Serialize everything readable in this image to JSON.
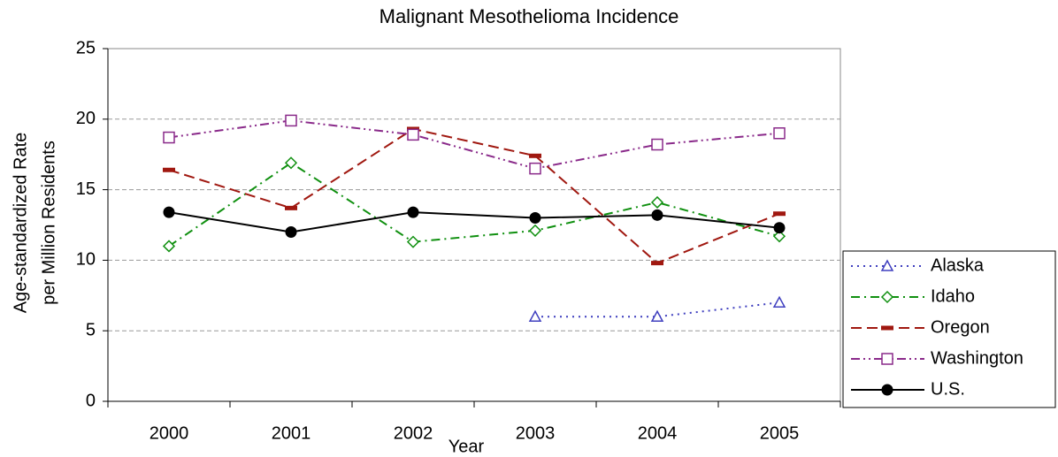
{
  "chart_data": {
    "type": "line",
    "title": "Malignant Mesothelioma Incidence",
    "xlabel": "Year",
    "ylabel": [
      "Age-standardized Rate",
      "per Million Residents"
    ],
    "categories": [
      "2000",
      "2001",
      "2002",
      "2003",
      "2004",
      "2005"
    ],
    "ylim": [
      0,
      25
    ],
    "yticks": [
      0,
      5,
      10,
      15,
      20,
      25
    ],
    "grid": true,
    "legend": "right",
    "series": [
      {
        "name": "Alaska",
        "color": "#3f3fbf",
        "marker": "triangle",
        "dash": "2,5",
        "values": [
          null,
          null,
          null,
          6,
          6,
          7
        ]
      },
      {
        "name": "Idaho",
        "color": "#109010",
        "marker": "diamond",
        "dash": "10,5,2,5",
        "values": [
          11,
          16.9,
          11.3,
          12.1,
          14.1,
          11.7
        ]
      },
      {
        "name": "Oregon",
        "color": "#a01810",
        "marker": "bar",
        "dash": "12,6",
        "values": [
          16.4,
          13.7,
          19.3,
          17.4,
          9.8,
          13.3
        ]
      },
      {
        "name": "Washington",
        "color": "#8a2a8a",
        "marker": "square",
        "dash": "10,4,2,4,2,4",
        "values": [
          18.7,
          19.9,
          18.9,
          16.5,
          18.2,
          19
        ]
      },
      {
        "name": "U.S.",
        "color": "#000000",
        "marker": "circle",
        "dash": "",
        "values": [
          13.4,
          12,
          13.4,
          13,
          13.2,
          12.3
        ]
      }
    ]
  }
}
